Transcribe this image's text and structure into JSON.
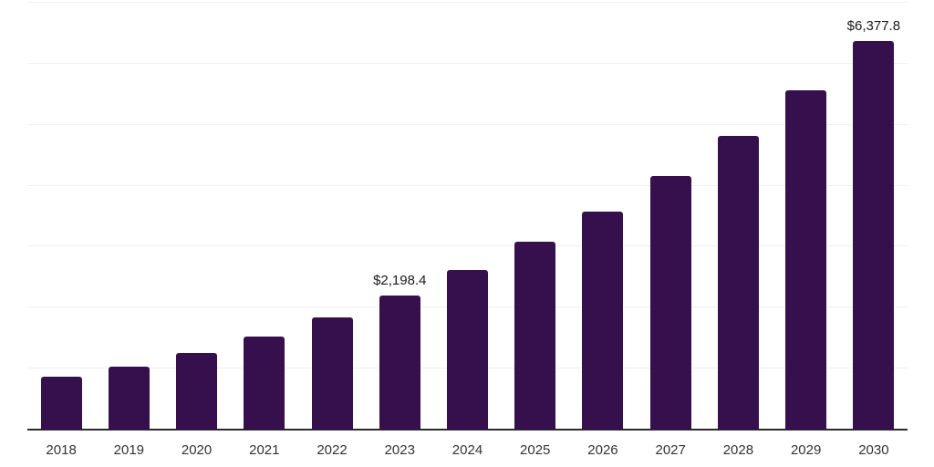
{
  "chart_data": {
    "type": "bar",
    "title": "",
    "xlabel": "",
    "ylabel": "",
    "categories": [
      "2018",
      "2019",
      "2020",
      "2021",
      "2022",
      "2023",
      "2024",
      "2025",
      "2026",
      "2027",
      "2028",
      "2029",
      "2030"
    ],
    "values": [
      870,
      1035,
      1260,
      1525,
      1840,
      2198.4,
      2615,
      3075,
      3575,
      4160,
      4815,
      5560,
      6377.8
    ],
    "data_labels": [
      "",
      "",
      "",
      "",
      "",
      "$2,198.4",
      "",
      "",
      "",
      "",
      "",
      "",
      "$6,377.8"
    ],
    "ylim": [
      0,
      7000
    ],
    "gridline_step": 1000,
    "grid": true,
    "legend": false,
    "layout_hints": {
      "y_axis_tick_labels_visible": false,
      "gridlines_horizontal_only": true
    },
    "colors": {
      "bar": "#36104d",
      "gridline": "#f0f0f1",
      "axis_line": "#2b2b2b",
      "value_label": "#1a1a1a",
      "tick_label": "#333333",
      "background": "#ffffff"
    }
  }
}
